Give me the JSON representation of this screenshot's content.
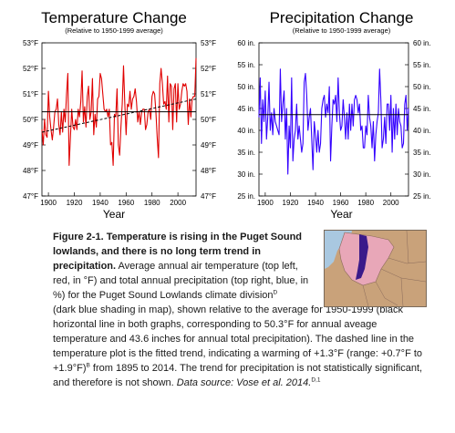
{
  "chart_data": [
    {
      "type": "line",
      "title": "Temperature Change",
      "subtitle": "(Relative to 1950-1999 average)",
      "xlabel": "Year",
      "xlim": [
        1895,
        2014
      ],
      "ylim": [
        47,
        53
      ],
      "x_ticks": [
        1900,
        1920,
        1940,
        1960,
        1980,
        2000
      ],
      "y_ticks": [
        47,
        48,
        49,
        50,
        51,
        52,
        53
      ],
      "y_tick_labels": [
        "47°F",
        "48°F",
        "49°F",
        "50°F",
        "51°F",
        "52°F",
        "53°F"
      ],
      "reference_line": 50.3,
      "trend_line": {
        "x": [
          1895,
          2014
        ],
        "y": [
          49.5,
          50.8
        ]
      },
      "grid": false,
      "series": [
        {
          "color": "#e00000",
          "x": [
            1895,
            1896,
            1897,
            1898,
            1899,
            1900,
            1901,
            1902,
            1903,
            1904,
            1905,
            1906,
            1907,
            1908,
            1909,
            1910,
            1911,
            1912,
            1913,
            1914,
            1915,
            1916,
            1917,
            1918,
            1919,
            1920,
            1921,
            1922,
            1923,
            1924,
            1925,
            1926,
            1927,
            1928,
            1929,
            1930,
            1931,
            1932,
            1933,
            1934,
            1935,
            1936,
            1937,
            1938,
            1939,
            1940,
            1941,
            1942,
            1943,
            1944,
            1945,
            1946,
            1947,
            1948,
            1949,
            1950,
            1951,
            1952,
            1953,
            1954,
            1955,
            1956,
            1957,
            1958,
            1959,
            1960,
            1961,
            1962,
            1963,
            1964,
            1965,
            1966,
            1967,
            1968,
            1969,
            1970,
            1971,
            1972,
            1973,
            1974,
            1975,
            1976,
            1977,
            1978,
            1979,
            1980,
            1981,
            1982,
            1983,
            1984,
            1985,
            1986,
            1987,
            1988,
            1989,
            1990,
            1991,
            1992,
            1993,
            1994,
            1995,
            1996,
            1997,
            1998,
            1999,
            2000,
            2001,
            2002,
            2003,
            2004,
            2005,
            2006,
            2007,
            2008,
            2009,
            2010,
            2011,
            2012,
            2013,
            2014
          ],
          "y": [
            49.6,
            49.0,
            50.0,
            49.4,
            49.3,
            51.1,
            50.1,
            49.6,
            49.2,
            49.7,
            50.3,
            50.4,
            50.8,
            49.8,
            49.4,
            50.3,
            49.5,
            50.4,
            49.9,
            51.0,
            51.8,
            48.2,
            49.3,
            50.4,
            49.7,
            49.6,
            50.0,
            49.6,
            50.4,
            50.1,
            50.7,
            51.9,
            49.9,
            50.5,
            49.7,
            50.9,
            51.3,
            50.0,
            50.3,
            51.6,
            49.4,
            50.2,
            49.7,
            50.8,
            50.9,
            51.8,
            51.6,
            51.0,
            50.4,
            50.3,
            50.4,
            50.1,
            50.4,
            49.0,
            49.1,
            48.2,
            50.2,
            50.1,
            51.2,
            49.0,
            48.6,
            49.7,
            50.6,
            52.1,
            50.6,
            49.4,
            50.6,
            50.5,
            51.1,
            50.4,
            50.8,
            50.9,
            51.2,
            50.7,
            49.9,
            50.3,
            49.8,
            50.3,
            50.4,
            50.4,
            49.6,
            49.8,
            50.3,
            50.4,
            50.0,
            50.9,
            51.1,
            51.0,
            50.3,
            49.3,
            48.5,
            51.4,
            52.0,
            51.4,
            50.6,
            50.7,
            50.4,
            51.7,
            49.9,
            51.4,
            51.3,
            49.6,
            51.2,
            51.4,
            49.9,
            51.4,
            50.4,
            50.6,
            51.1,
            51.4,
            51.3,
            51.4,
            51.1,
            49.8,
            50.8,
            50.1,
            50.8,
            50.9,
            50.9,
            52.4
          ]
        }
      ]
    },
    {
      "type": "line",
      "title": "Precipitation Change",
      "subtitle": "(Relative to 1950-1999 average)",
      "xlabel": "Year",
      "xlim": [
        1895,
        2014
      ],
      "ylim": [
        25,
        60
      ],
      "x_ticks": [
        1900,
        1920,
        1940,
        1960,
        1980,
        2000
      ],
      "y_ticks": [
        25,
        30,
        35,
        40,
        45,
        50,
        55,
        60
      ],
      "y_tick_labels": [
        "25 in.",
        "30 in.",
        "35 in.",
        "40 in.",
        "45 in.",
        "50 in.",
        "55 in.",
        "60 in."
      ],
      "reference_line": 43.6,
      "grid": false,
      "series": [
        {
          "color": "#3300ff",
          "x": [
            1895,
            1896,
            1897,
            1898,
            1899,
            1900,
            1901,
            1902,
            1903,
            1904,
            1905,
            1906,
            1907,
            1908,
            1909,
            1910,
            1911,
            1912,
            1913,
            1914,
            1915,
            1916,
            1917,
            1918,
            1919,
            1920,
            1921,
            1922,
            1923,
            1924,
            1925,
            1926,
            1927,
            1928,
            1929,
            1930,
            1931,
            1932,
            1933,
            1934,
            1935,
            1936,
            1937,
            1938,
            1939,
            1940,
            1941,
            1942,
            1943,
            1944,
            1945,
            1946,
            1947,
            1948,
            1949,
            1950,
            1951,
            1952,
            1953,
            1954,
            1955,
            1956,
            1957,
            1958,
            1959,
            1960,
            1961,
            1962,
            1963,
            1964,
            1965,
            1966,
            1967,
            1968,
            1969,
            1970,
            1971,
            1972,
            1973,
            1974,
            1975,
            1976,
            1977,
            1978,
            1979,
            1980,
            1981,
            1982,
            1983,
            1984,
            1985,
            1986,
            1987,
            1988,
            1989,
            1990,
            1991,
            1992,
            1993,
            1994,
            1995,
            1996,
            1997,
            1998,
            1999,
            2000,
            2001,
            2002,
            2003,
            2004,
            2005,
            2006,
            2007,
            2008,
            2009,
            2010,
            2011,
            2012,
            2013,
            2014
          ],
          "y": [
            43,
            52,
            37,
            47,
            42,
            49,
            38,
            43,
            51,
            40,
            44,
            39,
            45,
            42,
            41,
            40,
            39,
            54,
            42,
            46,
            49,
            38,
            45,
            30,
            41,
            36,
            52,
            33,
            38,
            40,
            46,
            38,
            41,
            38,
            35,
            37,
            51,
            53,
            48,
            40,
            43,
            45,
            38,
            31,
            42,
            39,
            35,
            40,
            35,
            37,
            45,
            47,
            48,
            43,
            46,
            44,
            50,
            33,
            41,
            47,
            46,
            48,
            42,
            52,
            44,
            40,
            41,
            47,
            43,
            38,
            44,
            38,
            46,
            40,
            46,
            41,
            47,
            48,
            47,
            44,
            46,
            40,
            41,
            36,
            36,
            41,
            39,
            48,
            43,
            41,
            36,
            42,
            33,
            39,
            42,
            44,
            54,
            47,
            36,
            38,
            43,
            37,
            46,
            46,
            40,
            48,
            35,
            45,
            38,
            46,
            39,
            45,
            42,
            41,
            36,
            37,
            46,
            48,
            40,
            45
          ]
        }
      ]
    }
  ],
  "caption": {
    "figure_label": "Figure 2-1.",
    "bold_text": "Temperature is rising in the Puget Sound lowlands, and there is no long term trend in precipitation.",
    "part1": "Average annual air temperature (top left, red, in °F) and total annual precipitation (top right, blue, in %) for the Puget Sound Lowlands climate division",
    "sup1": "D",
    "part2": "(dark blue shading in map), shown relative to the average for 1950-1999 (black horizontal line in both graphs, corresponding to 50.3°F for annual aveage temperature and 43.6 inches for annual total precipitation). The dashed line in the temperature plot is the fitted trend, indicating a warming of +1.3°F (range: +0.7°F to +1.9°F)",
    "sup2": "B",
    "part3": "from 1895 to 2014. The trend for precipitation is not statistically significant, and therefore is not shown.",
    "source": "Data source: Vose et al. 2014.",
    "sup3": "D,1"
  },
  "colors": {
    "temperature_line": "#e00000",
    "precipitation_line": "#3300ff",
    "reference_line": "#000000",
    "map_land": "#c9a27a",
    "map_water": "#a9c8e0",
    "map_pink": "#e8a7b8",
    "map_division": "#3a1a8a"
  }
}
